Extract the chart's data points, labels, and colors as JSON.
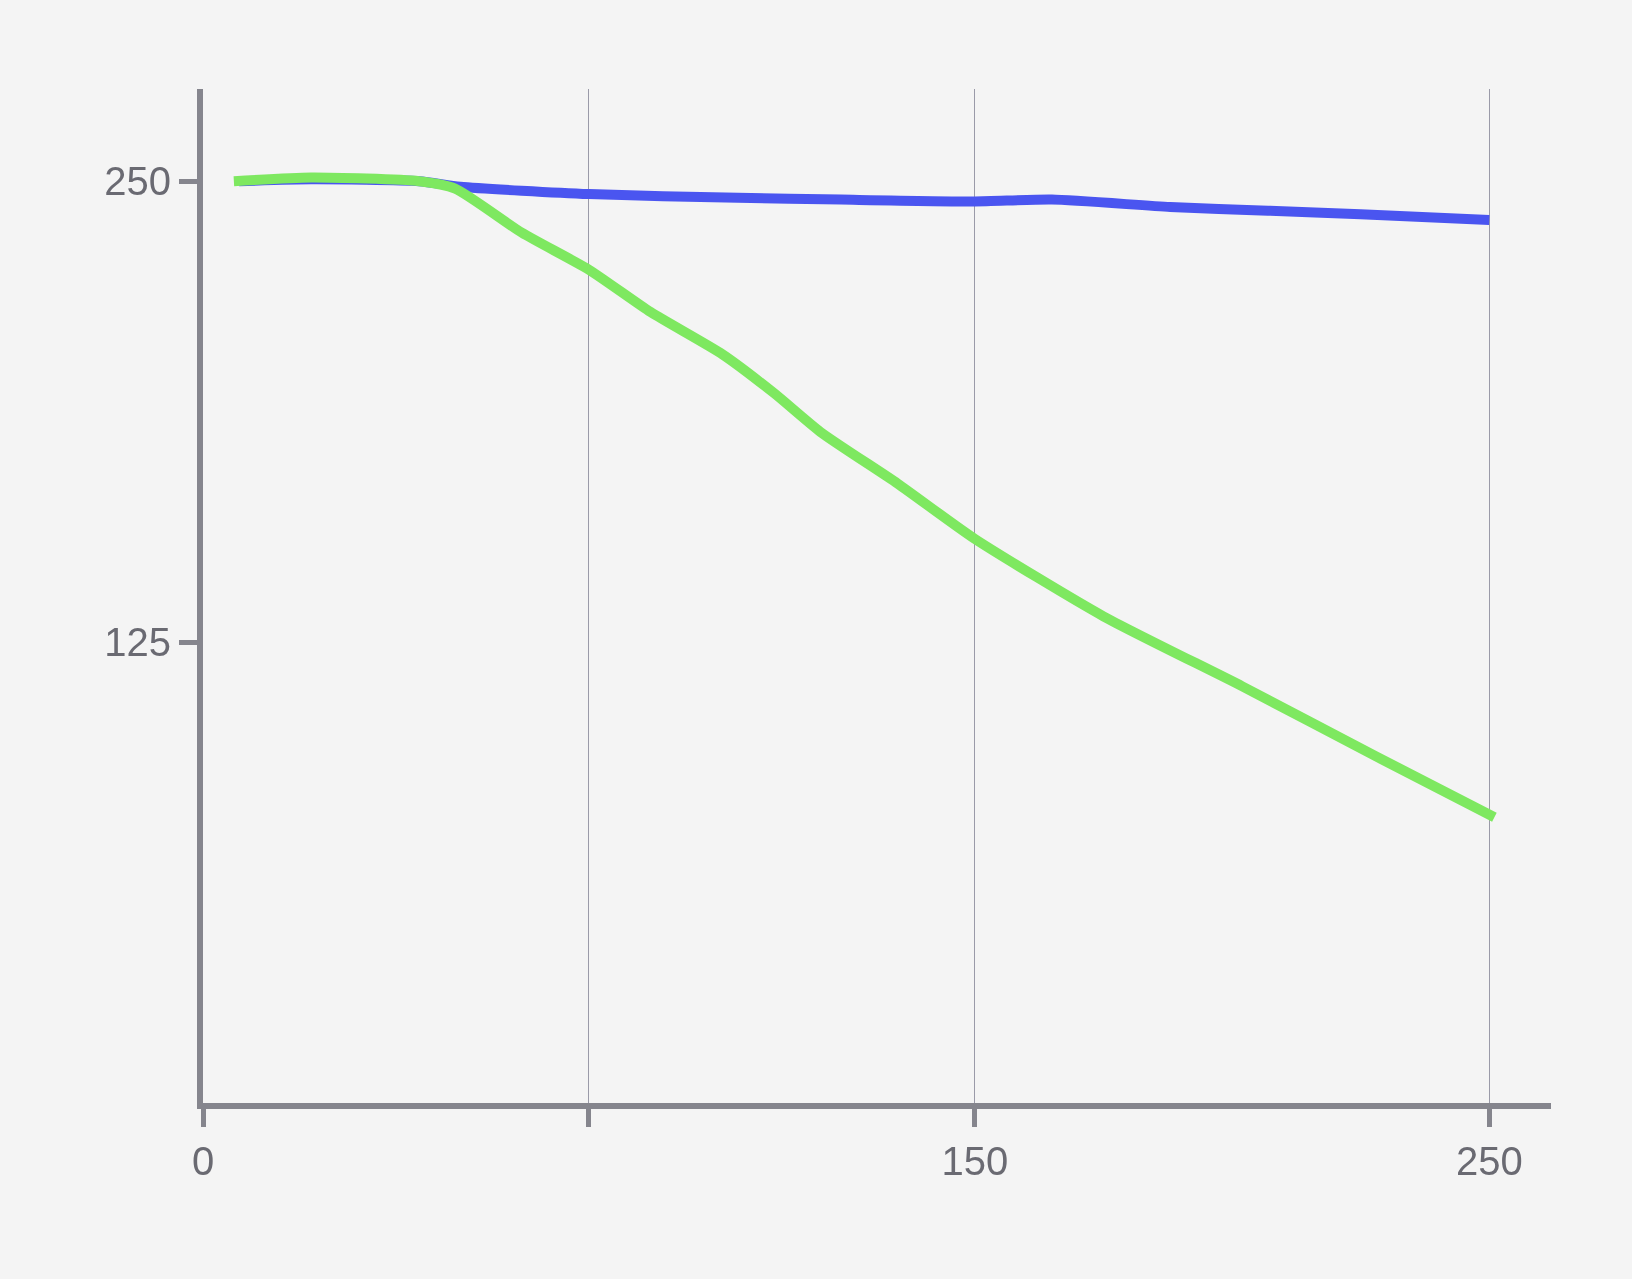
{
  "chart_data": {
    "type": "line",
    "xlim": [
      0,
      262
    ],
    "ylim": [
      0,
      275
    ],
    "xticks": [
      0,
      {
        "value": 75,
        "label": null
      },
      150,
      250
    ],
    "yticks": [
      125,
      250
    ],
    "grid": "x",
    "series": [
      {
        "color": "#4a55f0",
        "x": [
          7,
          21,
          42,
          50,
          75,
          104,
          124,
          150,
          165,
          188,
          207,
          225,
          250
        ],
        "values": [
          250,
          250.5,
          250,
          248.5,
          246.5,
          245.5,
          245,
          244.5,
          245,
          243,
          242,
          241,
          239.5
        ]
      },
      {
        "color": "#7ee860",
        "x": [
          6,
          21,
          42,
          49,
          62,
          75,
          87,
          101,
          111,
          120,
          135,
          150,
          175,
          202,
          228,
          251
        ],
        "values": [
          250,
          251,
          250,
          248,
          236,
          226,
          214.5,
          203,
          192.5,
          182,
          168,
          153,
          132,
          113,
          94,
          77.5
        ]
      }
    ]
  }
}
